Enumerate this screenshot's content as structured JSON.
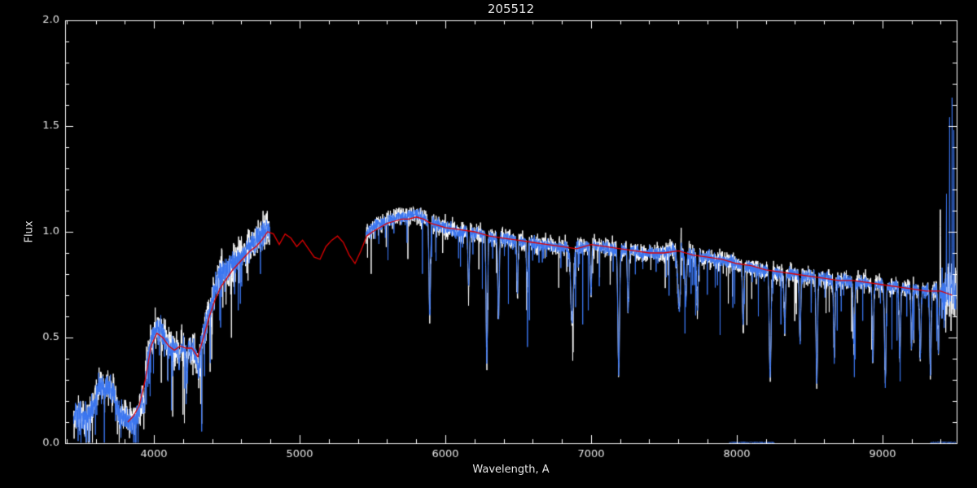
{
  "colors": {
    "background": "#000000",
    "axis": "#ffffff",
    "text": "#e6e6e6",
    "observed_white": "#ffffff",
    "observed_blue": "#3b76f0",
    "model_red": "#e10000"
  },
  "chart_data": {
    "type": "line",
    "title": "205512",
    "xlabel": "Wavelength, A",
    "ylabel": "Flux",
    "xlim": [
      3390,
      9510
    ],
    "ylim": [
      0.0,
      2.0
    ],
    "x_major_ticks": [
      4000,
      5000,
      6000,
      7000,
      8000,
      9000
    ],
    "x_minor_step": 200,
    "y_major_ticks": [
      0.0,
      0.5,
      1.0,
      1.5,
      2.0
    ],
    "y_minor_step": 0.1,
    "grid": false,
    "legend": "none",
    "observed_segments": [
      [
        3448,
        4795
      ],
      [
        5455,
        9505
      ]
    ],
    "observed_continuum": [
      [
        3450,
        0.12
      ],
      [
        3480,
        0.15
      ],
      [
        3510,
        0.13
      ],
      [
        3540,
        0.12
      ],
      [
        3570,
        0.16
      ],
      [
        3600,
        0.22
      ],
      [
        3630,
        0.28
      ],
      [
        3660,
        0.25
      ],
      [
        3690,
        0.27
      ],
      [
        3720,
        0.24
      ],
      [
        3750,
        0.16
      ],
      [
        3780,
        0.13
      ],
      [
        3810,
        0.12
      ],
      [
        3840,
        0.1
      ],
      [
        3870,
        0.13
      ],
      [
        3900,
        0.16
      ],
      [
        3930,
        0.24
      ],
      [
        3960,
        0.42
      ],
      [
        3990,
        0.5
      ],
      [
        4020,
        0.54
      ],
      [
        4050,
        0.55
      ],
      [
        4080,
        0.5
      ],
      [
        4110,
        0.45
      ],
      [
        4140,
        0.44
      ],
      [
        4170,
        0.46
      ],
      [
        4200,
        0.45
      ],
      [
        4230,
        0.44
      ],
      [
        4260,
        0.46
      ],
      [
        4290,
        0.41
      ],
      [
        4320,
        0.44
      ],
      [
        4350,
        0.55
      ],
      [
        4380,
        0.62
      ],
      [
        4410,
        0.7
      ],
      [
        4440,
        0.78
      ],
      [
        4470,
        0.82
      ],
      [
        4500,
        0.81
      ],
      [
        4530,
        0.84
      ],
      [
        4560,
        0.86
      ],
      [
        4590,
        0.87
      ],
      [
        4620,
        0.9
      ],
      [
        4650,
        0.93
      ],
      [
        4680,
        0.96
      ],
      [
        4710,
        0.97
      ],
      [
        4740,
        0.99
      ],
      [
        4770,
        1.01
      ],
      [
        4795,
        1.02
      ],
      [
        5455,
        0.99
      ],
      [
        5490,
        1.01
      ],
      [
        5520,
        1.03
      ],
      [
        5560,
        1.04
      ],
      [
        5600,
        1.05
      ],
      [
        5640,
        1.06
      ],
      [
        5680,
        1.07
      ],
      [
        5720,
        1.07
      ],
      [
        5760,
        1.08
      ],
      [
        5800,
        1.08
      ],
      [
        5840,
        1.07
      ],
      [
        5880,
        1.05
      ],
      [
        5920,
        1.04
      ],
      [
        5960,
        1.03
      ],
      [
        6000,
        1.02
      ],
      [
        6050,
        1.01
      ],
      [
        6100,
        1.0
      ],
      [
        6150,
        1.0
      ],
      [
        6200,
        0.99
      ],
      [
        6250,
        0.99
      ],
      [
        6300,
        0.98
      ],
      [
        6350,
        0.97
      ],
      [
        6400,
        0.97
      ],
      [
        6450,
        0.96
      ],
      [
        6500,
        0.96
      ],
      [
        6550,
        0.95
      ],
      [
        6600,
        0.95
      ],
      [
        6650,
        0.94
      ],
      [
        6700,
        0.94
      ],
      [
        6750,
        0.93
      ],
      [
        6800,
        0.93
      ],
      [
        6850,
        0.92
      ],
      [
        6900,
        0.92
      ],
      [
        6950,
        0.93
      ],
      [
        7000,
        0.94
      ],
      [
        7050,
        0.93
      ],
      [
        7100,
        0.93
      ],
      [
        7150,
        0.92
      ],
      [
        7200,
        0.92
      ],
      [
        7250,
        0.91
      ],
      [
        7300,
        0.91
      ],
      [
        7350,
        0.9
      ],
      [
        7400,
        0.9
      ],
      [
        7450,
        0.9
      ],
      [
        7500,
        0.9
      ],
      [
        7550,
        0.91
      ],
      [
        7600,
        0.92
      ],
      [
        7650,
        0.9
      ],
      [
        7700,
        0.89
      ],
      [
        7750,
        0.88
      ],
      [
        7800,
        0.88
      ],
      [
        7850,
        0.87
      ],
      [
        7900,
        0.86
      ],
      [
        7950,
        0.86
      ],
      [
        8000,
        0.85
      ],
      [
        8050,
        0.84
      ],
      [
        8100,
        0.83
      ],
      [
        8150,
        0.82
      ],
      [
        8200,
        0.82
      ],
      [
        8250,
        0.81
      ],
      [
        8300,
        0.8
      ],
      [
        8350,
        0.8
      ],
      [
        8400,
        0.8
      ],
      [
        8450,
        0.79
      ],
      [
        8500,
        0.79
      ],
      [
        8550,
        0.78
      ],
      [
        8600,
        0.78
      ],
      [
        8650,
        0.77
      ],
      [
        8700,
        0.77
      ],
      [
        8750,
        0.77
      ],
      [
        8800,
        0.76
      ],
      [
        8850,
        0.76
      ],
      [
        8900,
        0.76
      ],
      [
        8950,
        0.75
      ],
      [
        9000,
        0.75
      ],
      [
        9050,
        0.74
      ],
      [
        9100,
        0.74
      ],
      [
        9150,
        0.73
      ],
      [
        9200,
        0.73
      ],
      [
        9250,
        0.73
      ],
      [
        9300,
        0.72
      ],
      [
        9350,
        0.72
      ],
      [
        9400,
        0.72
      ],
      [
        9450,
        0.71
      ],
      [
        9505,
        0.71
      ]
    ],
    "absorption_features": [
      [
        3933,
        0.1,
        4
      ],
      [
        4172,
        0.08,
        5
      ],
      [
        4227,
        0.12,
        4
      ],
      [
        4305,
        0.1,
        6
      ],
      [
        5893,
        0.45,
        5
      ],
      [
        6160,
        0.25,
        5
      ],
      [
        6285,
        0.6,
        5
      ],
      [
        6365,
        0.38,
        5
      ],
      [
        6495,
        0.25,
        4
      ],
      [
        6563,
        0.22,
        5
      ],
      [
        6870,
        0.35,
        9
      ],
      [
        7000,
        0.22,
        5
      ],
      [
        7190,
        0.58,
        6
      ],
      [
        7255,
        0.28,
        5
      ],
      [
        7605,
        0.28,
        10
      ],
      [
        7650,
        0.22,
        6
      ],
      [
        7730,
        0.25,
        5
      ],
      [
        8045,
        0.28,
        5
      ],
      [
        8230,
        0.5,
        6
      ],
      [
        8330,
        0.25,
        5
      ],
      [
        8435,
        0.3,
        5
      ],
      [
        8550,
        0.5,
        5
      ],
      [
        8670,
        0.35,
        5
      ],
      [
        8805,
        0.3,
        5
      ],
      [
        8935,
        0.35,
        5
      ],
      [
        9020,
        0.45,
        5
      ],
      [
        9120,
        0.32,
        5
      ],
      [
        9200,
        0.28,
        4
      ],
      [
        9260,
        0.32,
        5
      ],
      [
        9330,
        0.38,
        5
      ],
      [
        9385,
        0.3,
        4
      ]
    ],
    "zero_level_segments": [
      [
        7950,
        8260
      ],
      [
        9330,
        9505
      ]
    ],
    "series": [
      {
        "name": "observed_envelope_white",
        "color_key": "observed_white",
        "noise_amp_blue_arm": 0.085,
        "noise_amp_red_arm": 0.045,
        "spike_prob": 0.02,
        "spike_depth": 0.32,
        "seed": 101,
        "emissions": [
          [
            7618,
            0.22,
            2.5
          ],
          [
            9398,
            0.38,
            1.5
          ]
        ]
      },
      {
        "name": "observed_blue",
        "color_key": "observed_blue",
        "noise_amp_blue_arm": 0.055,
        "noise_amp_red_arm": 0.03,
        "spike_prob": 0.03,
        "spike_depth": 0.35,
        "seed": 202,
        "emissions": [
          [
            7618,
            0.15,
            2.5
          ],
          [
            9440,
            0.35,
            1.5
          ],
          [
            9462,
            0.82,
            1.2
          ],
          [
            9479,
            1.02,
            1.0
          ],
          [
            9491,
            0.88,
            0.9
          ]
        ]
      },
      {
        "name": "model_red",
        "color_key": "model_red",
        "points": [
          [
            3820,
            0.1
          ],
          [
            3860,
            0.13
          ],
          [
            3900,
            0.18
          ],
          [
            3940,
            0.3
          ],
          [
            3980,
            0.46
          ],
          [
            4020,
            0.52
          ],
          [
            4060,
            0.5
          ],
          [
            4100,
            0.46
          ],
          [
            4140,
            0.44
          ],
          [
            4180,
            0.46
          ],
          [
            4220,
            0.45
          ],
          [
            4260,
            0.45
          ],
          [
            4300,
            0.41
          ],
          [
            4340,
            0.5
          ],
          [
            4380,
            0.6
          ],
          [
            4420,
            0.68
          ],
          [
            4460,
            0.74
          ],
          [
            4500,
            0.78
          ],
          [
            4540,
            0.82
          ],
          [
            4580,
            0.85
          ],
          [
            4620,
            0.88
          ],
          [
            4660,
            0.91
          ],
          [
            4700,
            0.93
          ],
          [
            4740,
            0.96
          ],
          [
            4780,
            1.0
          ],
          [
            4820,
            0.99
          ],
          [
            4860,
            0.94
          ],
          [
            4900,
            0.99
          ],
          [
            4940,
            0.97
          ],
          [
            4980,
            0.93
          ],
          [
            5020,
            0.96
          ],
          [
            5060,
            0.92
          ],
          [
            5100,
            0.88
          ],
          [
            5140,
            0.87
          ],
          [
            5180,
            0.93
          ],
          [
            5220,
            0.96
          ],
          [
            5260,
            0.98
          ],
          [
            5300,
            0.95
          ],
          [
            5340,
            0.89
          ],
          [
            5380,
            0.85
          ],
          [
            5420,
            0.91
          ],
          [
            5460,
            0.98
          ],
          [
            5500,
            1.0
          ],
          [
            5550,
            1.02
          ],
          [
            5600,
            1.04
          ],
          [
            5650,
            1.05
          ],
          [
            5700,
            1.06
          ],
          [
            5750,
            1.06
          ],
          [
            5800,
            1.07
          ],
          [
            5850,
            1.06
          ],
          [
            5900,
            1.04
          ],
          [
            5950,
            1.03
          ],
          [
            6000,
            1.02
          ],
          [
            6100,
            1.01
          ],
          [
            6200,
            1.0
          ],
          [
            6300,
            0.98
          ],
          [
            6400,
            0.97
          ],
          [
            6500,
            0.96
          ],
          [
            6600,
            0.95
          ],
          [
            6700,
            0.94
          ],
          [
            6800,
            0.93
          ],
          [
            6900,
            0.92
          ],
          [
            7000,
            0.94
          ],
          [
            7100,
            0.93
          ],
          [
            7200,
            0.92
          ],
          [
            7300,
            0.91
          ],
          [
            7400,
            0.9
          ],
          [
            7500,
            0.9
          ],
          [
            7600,
            0.91
          ],
          [
            7700,
            0.89
          ],
          [
            7800,
            0.88
          ],
          [
            7900,
            0.87
          ],
          [
            8000,
            0.85
          ],
          [
            8100,
            0.84
          ],
          [
            8200,
            0.82
          ],
          [
            8300,
            0.81
          ],
          [
            8400,
            0.8
          ],
          [
            8500,
            0.79
          ],
          [
            8600,
            0.78
          ],
          [
            8700,
            0.77
          ],
          [
            8800,
            0.77
          ],
          [
            8900,
            0.76
          ],
          [
            9000,
            0.75
          ],
          [
            9100,
            0.74
          ],
          [
            9200,
            0.73
          ],
          [
            9300,
            0.72
          ],
          [
            9400,
            0.72
          ],
          [
            9480,
            0.7
          ]
        ]
      }
    ]
  }
}
